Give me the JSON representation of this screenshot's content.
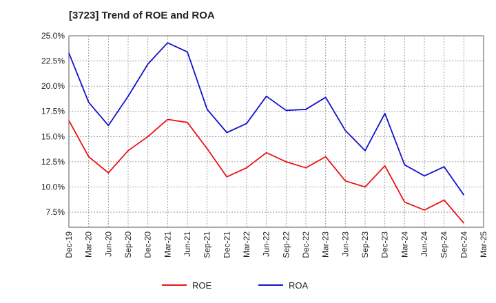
{
  "chart_data": {
    "type": "line",
    "title": "[3723]  Trend of ROE and ROA",
    "xlabel": "",
    "ylabel": "",
    "ylim": [
      6.0,
      25.0
    ],
    "yticks": [
      7.5,
      10.0,
      12.5,
      15.0,
      17.5,
      20.0,
      22.5,
      25.0
    ],
    "ytick_labels": [
      "7.5%",
      "10.0%",
      "12.5%",
      "15.0%",
      "17.5%",
      "20.0%",
      "22.5%",
      "25.0%"
    ],
    "x_tick_labels": [
      "Dec-19",
      "Mar-20",
      "Jun-20",
      "Sep-20",
      "Dec-20",
      "Mar-21",
      "Jun-21",
      "Sep-21",
      "Dec-21",
      "Mar-22",
      "Jun-22",
      "Sep-22",
      "Dec-22",
      "Mar-23",
      "Jun-23",
      "Sep-23",
      "Dec-23",
      "Mar-24",
      "Jun-24",
      "Sep-24",
      "Dec-24",
      "Mar-25"
    ],
    "categories": [
      "Dec-19",
      "Mar-20",
      "Jun-20",
      "Sep-20",
      "Dec-20",
      "Mar-21",
      "Jun-21",
      "Sep-21",
      "Dec-21",
      "Mar-22",
      "Jun-22",
      "Sep-22",
      "Dec-22",
      "Mar-23",
      "Jun-23",
      "Sep-23",
      "Dec-23",
      "Mar-24",
      "Jun-24",
      "Sep-24",
      "Dec-24"
    ],
    "series": [
      {
        "name": "ROE",
        "color": "#ee1111",
        "values": [
          16.6,
          13.0,
          11.4,
          13.6,
          15.0,
          16.7,
          16.4,
          13.8,
          11.0,
          11.9,
          13.4,
          12.5,
          11.9,
          13.0,
          10.6,
          10.0,
          12.1,
          8.5,
          7.7,
          8.7,
          6.4
        ]
      },
      {
        "name": "ROA",
        "color": "#1111cc",
        "values": [
          23.3,
          18.4,
          16.1,
          19.0,
          22.2,
          24.3,
          23.4,
          17.7,
          15.4,
          16.3,
          19.0,
          17.6,
          17.7,
          18.9,
          15.6,
          13.6,
          17.3,
          12.2,
          11.1,
          12.0,
          9.2
        ]
      }
    ],
    "grid": true,
    "legend_position": "bottom-center"
  }
}
